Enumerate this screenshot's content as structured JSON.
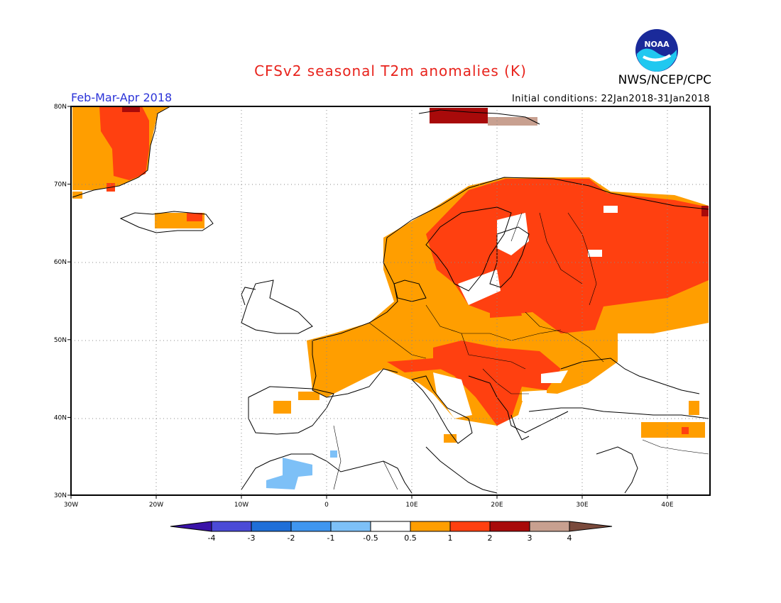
{
  "header": {
    "title": "CFSv2 seasonal T2m anomalies (K)",
    "period": "Feb-Mar-Apr 2018",
    "initial_conditions": "Initial conditions: 22Jan2018-31Jan2018",
    "agency": "NWS/NCEP/CPC",
    "logo_text": "NOAA"
  },
  "map": {
    "lon_range": [
      -30,
      45
    ],
    "lat_range": [
      30,
      80
    ],
    "lon_ticks": [
      "30W",
      "20W",
      "10W",
      "0",
      "10E",
      "20E",
      "30E",
      "40E"
    ],
    "lat_ticks": [
      "30N",
      "40N",
      "50N",
      "60N",
      "70N",
      "80N"
    ],
    "grid_style": "dotted"
  },
  "colorbar": {
    "labels": [
      "-4",
      "-3",
      "-2",
      "-1",
      "-0.5",
      "0.5",
      "1",
      "2",
      "3",
      "4"
    ],
    "colors": [
      "#3a13a8",
      "#4b4bd7",
      "#1f6fd8",
      "#3f96f0",
      "#7dc0f7",
      "#ffffff",
      "#ff9e00",
      "#ff4010",
      "#a80a0a",
      "#c8a090",
      "#7a4a3c"
    ]
  }
}
